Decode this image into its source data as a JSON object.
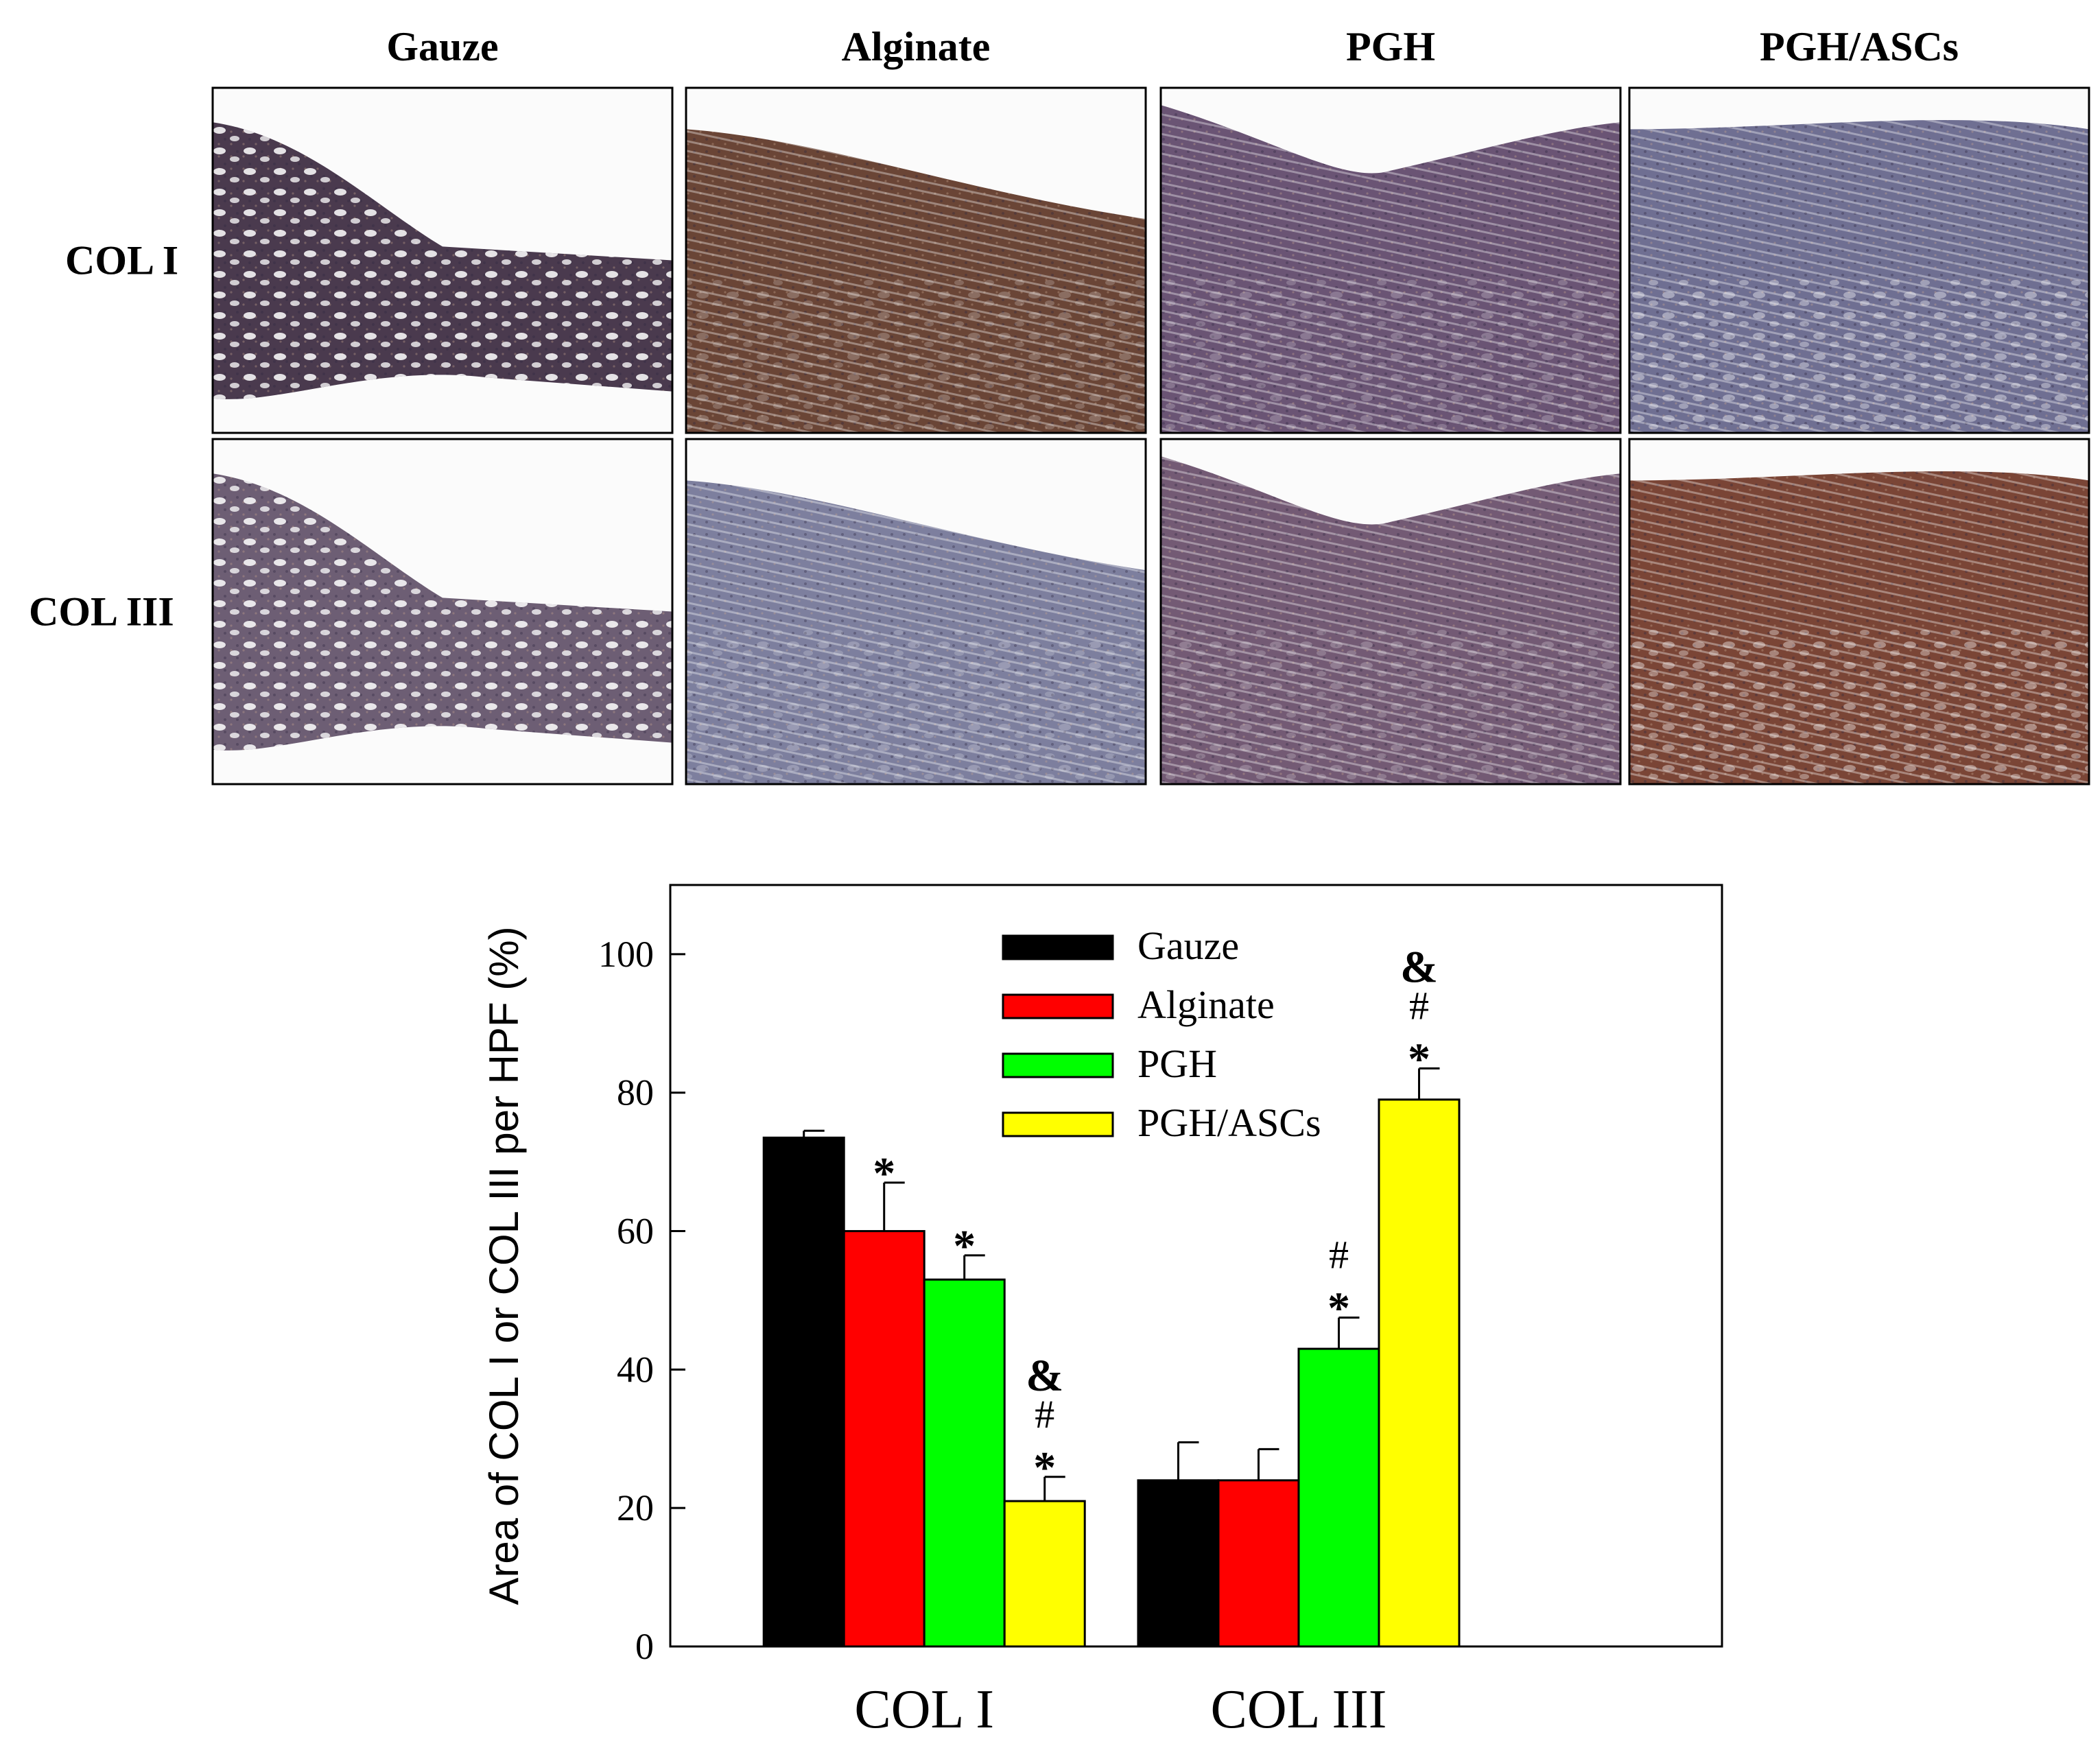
{
  "panels": {
    "columns": [
      "Gauze",
      "Alginate",
      "PGH",
      "PGH/ASCs"
    ],
    "rows": [
      "COL I",
      "COL III"
    ],
    "tissue_tone": [
      [
        "#4a3a4e",
        "#6a4536",
        "#6a5474",
        "#6f6f92"
      ],
      [
        "#6d5e74",
        "#7d7f9e",
        "#735a74",
        "#7a4536"
      ]
    ]
  },
  "chart_data": {
    "type": "bar",
    "categories": [
      "COL I",
      "COL III"
    ],
    "series": [
      {
        "name": "Gauze",
        "color": "#000000",
        "values": [
          73.5,
          24
        ],
        "errors": [
          1,
          5.5
        ],
        "marks": [
          "",
          ""
        ]
      },
      {
        "name": "Alginate",
        "color": "#ff0000",
        "values": [
          60,
          24
        ],
        "errors": [
          7,
          4.5
        ],
        "marks": [
          "*",
          ""
        ]
      },
      {
        "name": "PGH",
        "color": "#00ff00",
        "values": [
          53,
          43
        ],
        "errors": [
          3.5,
          4.5
        ],
        "marks": [
          "*",
          "*#"
        ]
      },
      {
        "name": "PGH/ASCs",
        "color": "#ffff00",
        "values": [
          21,
          79
        ],
        "errors": [
          3.5,
          4.5
        ],
        "marks": [
          "*#&",
          "*#&"
        ]
      }
    ],
    "ylabel": "Area of COL I or COL III per HPF (%)",
    "ylim": [
      0,
      110
    ],
    "yticks": [
      0,
      20,
      40,
      60,
      80,
      100
    ],
    "legend_position": "top-center"
  }
}
